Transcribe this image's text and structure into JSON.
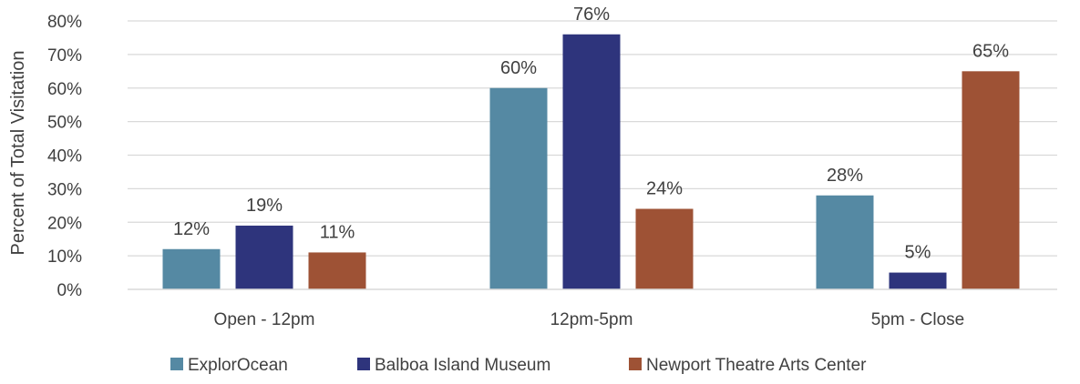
{
  "chart_data": {
    "type": "bar",
    "categories": [
      "Open - 12pm",
      "12pm-5pm",
      "5pm - Close"
    ],
    "series": [
      {
        "name": "ExplorOcean",
        "values": [
          12,
          60,
          28
        ],
        "color": "#5589A3"
      },
      {
        "name": "Balboa Island Museum",
        "values": [
          19,
          76,
          5
        ],
        "color": "#2E347C"
      },
      {
        "name": "Newport Theatre Arts Center",
        "values": [
          11,
          24,
          65
        ],
        "color": "#9E5235"
      }
    ],
    "data_labels": [
      [
        "12%",
        "60%",
        "28%"
      ],
      [
        "19%",
        "76%",
        "5%"
      ],
      [
        "11%",
        "24%",
        "65%"
      ]
    ],
    "y_ticks": [
      "0%",
      "10%",
      "20%",
      "30%",
      "40%",
      "50%",
      "60%",
      "70%",
      "80%"
    ],
    "ylabel": "Percent of Total Visitation",
    "ylim": [
      0,
      80
    ],
    "grid": true,
    "legend_position": "bottom"
  }
}
